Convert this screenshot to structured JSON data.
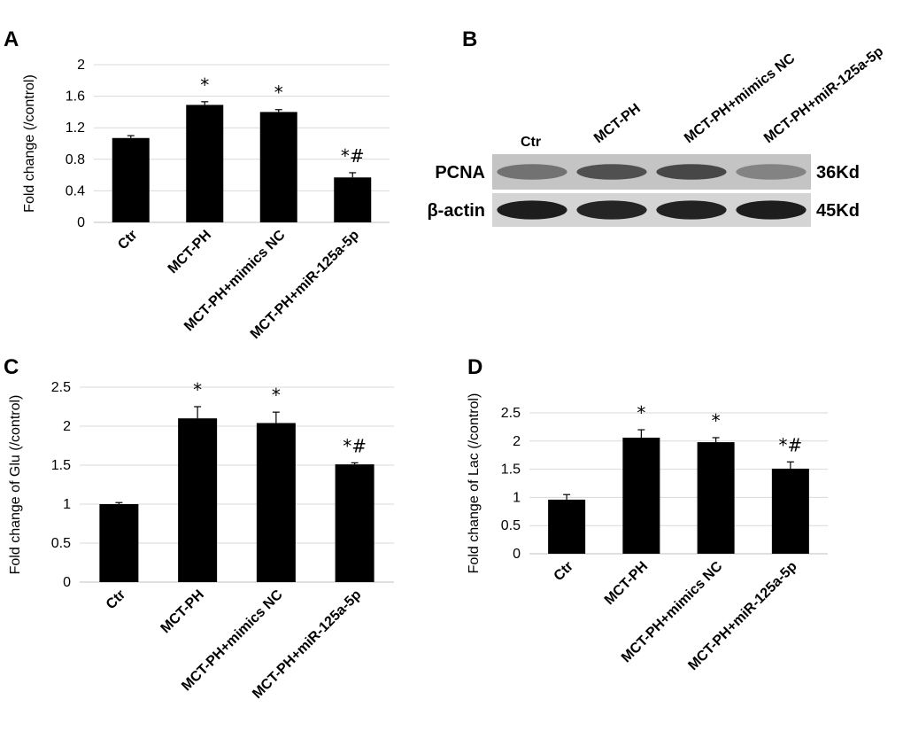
{
  "panels": {
    "A": "A",
    "B": "B",
    "C": "C",
    "D": "D"
  },
  "chart_data": [
    {
      "panel": "A",
      "type": "bar",
      "ylabel": "Fold change (/control)",
      "categories": [
        "Ctr",
        "MCT-PH",
        "MCT-PH+mimics NC",
        "MCT-PH+miR-125a-5p"
      ],
      "values": [
        1.07,
        1.49,
        1.4,
        0.57
      ],
      "errors": [
        0.03,
        0.04,
        0.03,
        0.06
      ],
      "significance": [
        "",
        "*",
        "*",
        "*#"
      ],
      "yticks": [
        "0",
        "0.4",
        "0.8",
        "1.2",
        "1.6",
        "2"
      ],
      "ylim": [
        0,
        2
      ],
      "grid": true,
      "bar_color": "#000000"
    },
    {
      "panel": "C",
      "type": "bar",
      "ylabel": "Fold change of Glu (/control)",
      "categories": [
        "Ctr",
        "MCT-PH",
        "MCT-PH+mimics NC",
        "MCT-PH+miR-125a-5p"
      ],
      "values": [
        1.0,
        2.1,
        2.04,
        1.51
      ],
      "errors": [
        0.02,
        0.15,
        0.14,
        0.02
      ],
      "significance": [
        "",
        "*",
        "*",
        "*#"
      ],
      "yticks": [
        "0",
        "0.5",
        "1",
        "1.5",
        "2",
        "2.5"
      ],
      "ylim": [
        0,
        2.5
      ],
      "grid": true,
      "bar_color": "#000000"
    },
    {
      "panel": "D",
      "type": "bar",
      "ylabel": "Fold change of Lac (/control)",
      "categories": [
        "Ctr",
        "MCT-PH",
        "MCT-PH+mimics NC",
        "MCT-PH+miR-125a-5p"
      ],
      "values": [
        0.96,
        2.06,
        1.98,
        1.51
      ],
      "errors": [
        0.09,
        0.14,
        0.08,
        0.12
      ],
      "significance": [
        "",
        "*",
        "*",
        "*#"
      ],
      "yticks": [
        "0",
        "0.5",
        "1",
        "1.5",
        "2",
        "2.5"
      ],
      "ylim": [
        0,
        2.5
      ],
      "grid": true,
      "bar_color": "#000000"
    }
  ],
  "blot": {
    "lanes": [
      "Ctr",
      "MCT-PH",
      "MCT-PH+mimics NC",
      "MCT-PH+miR-125a-5p"
    ],
    "rows": [
      {
        "protein": "PCNA",
        "size": "36Kd",
        "intensity": [
          0.45,
          0.65,
          0.7,
          0.35
        ]
      },
      {
        "protein": "β-actin",
        "size": "45Kd",
        "intensity": [
          0.95,
          0.9,
          0.92,
          0.95
        ]
      }
    ]
  }
}
